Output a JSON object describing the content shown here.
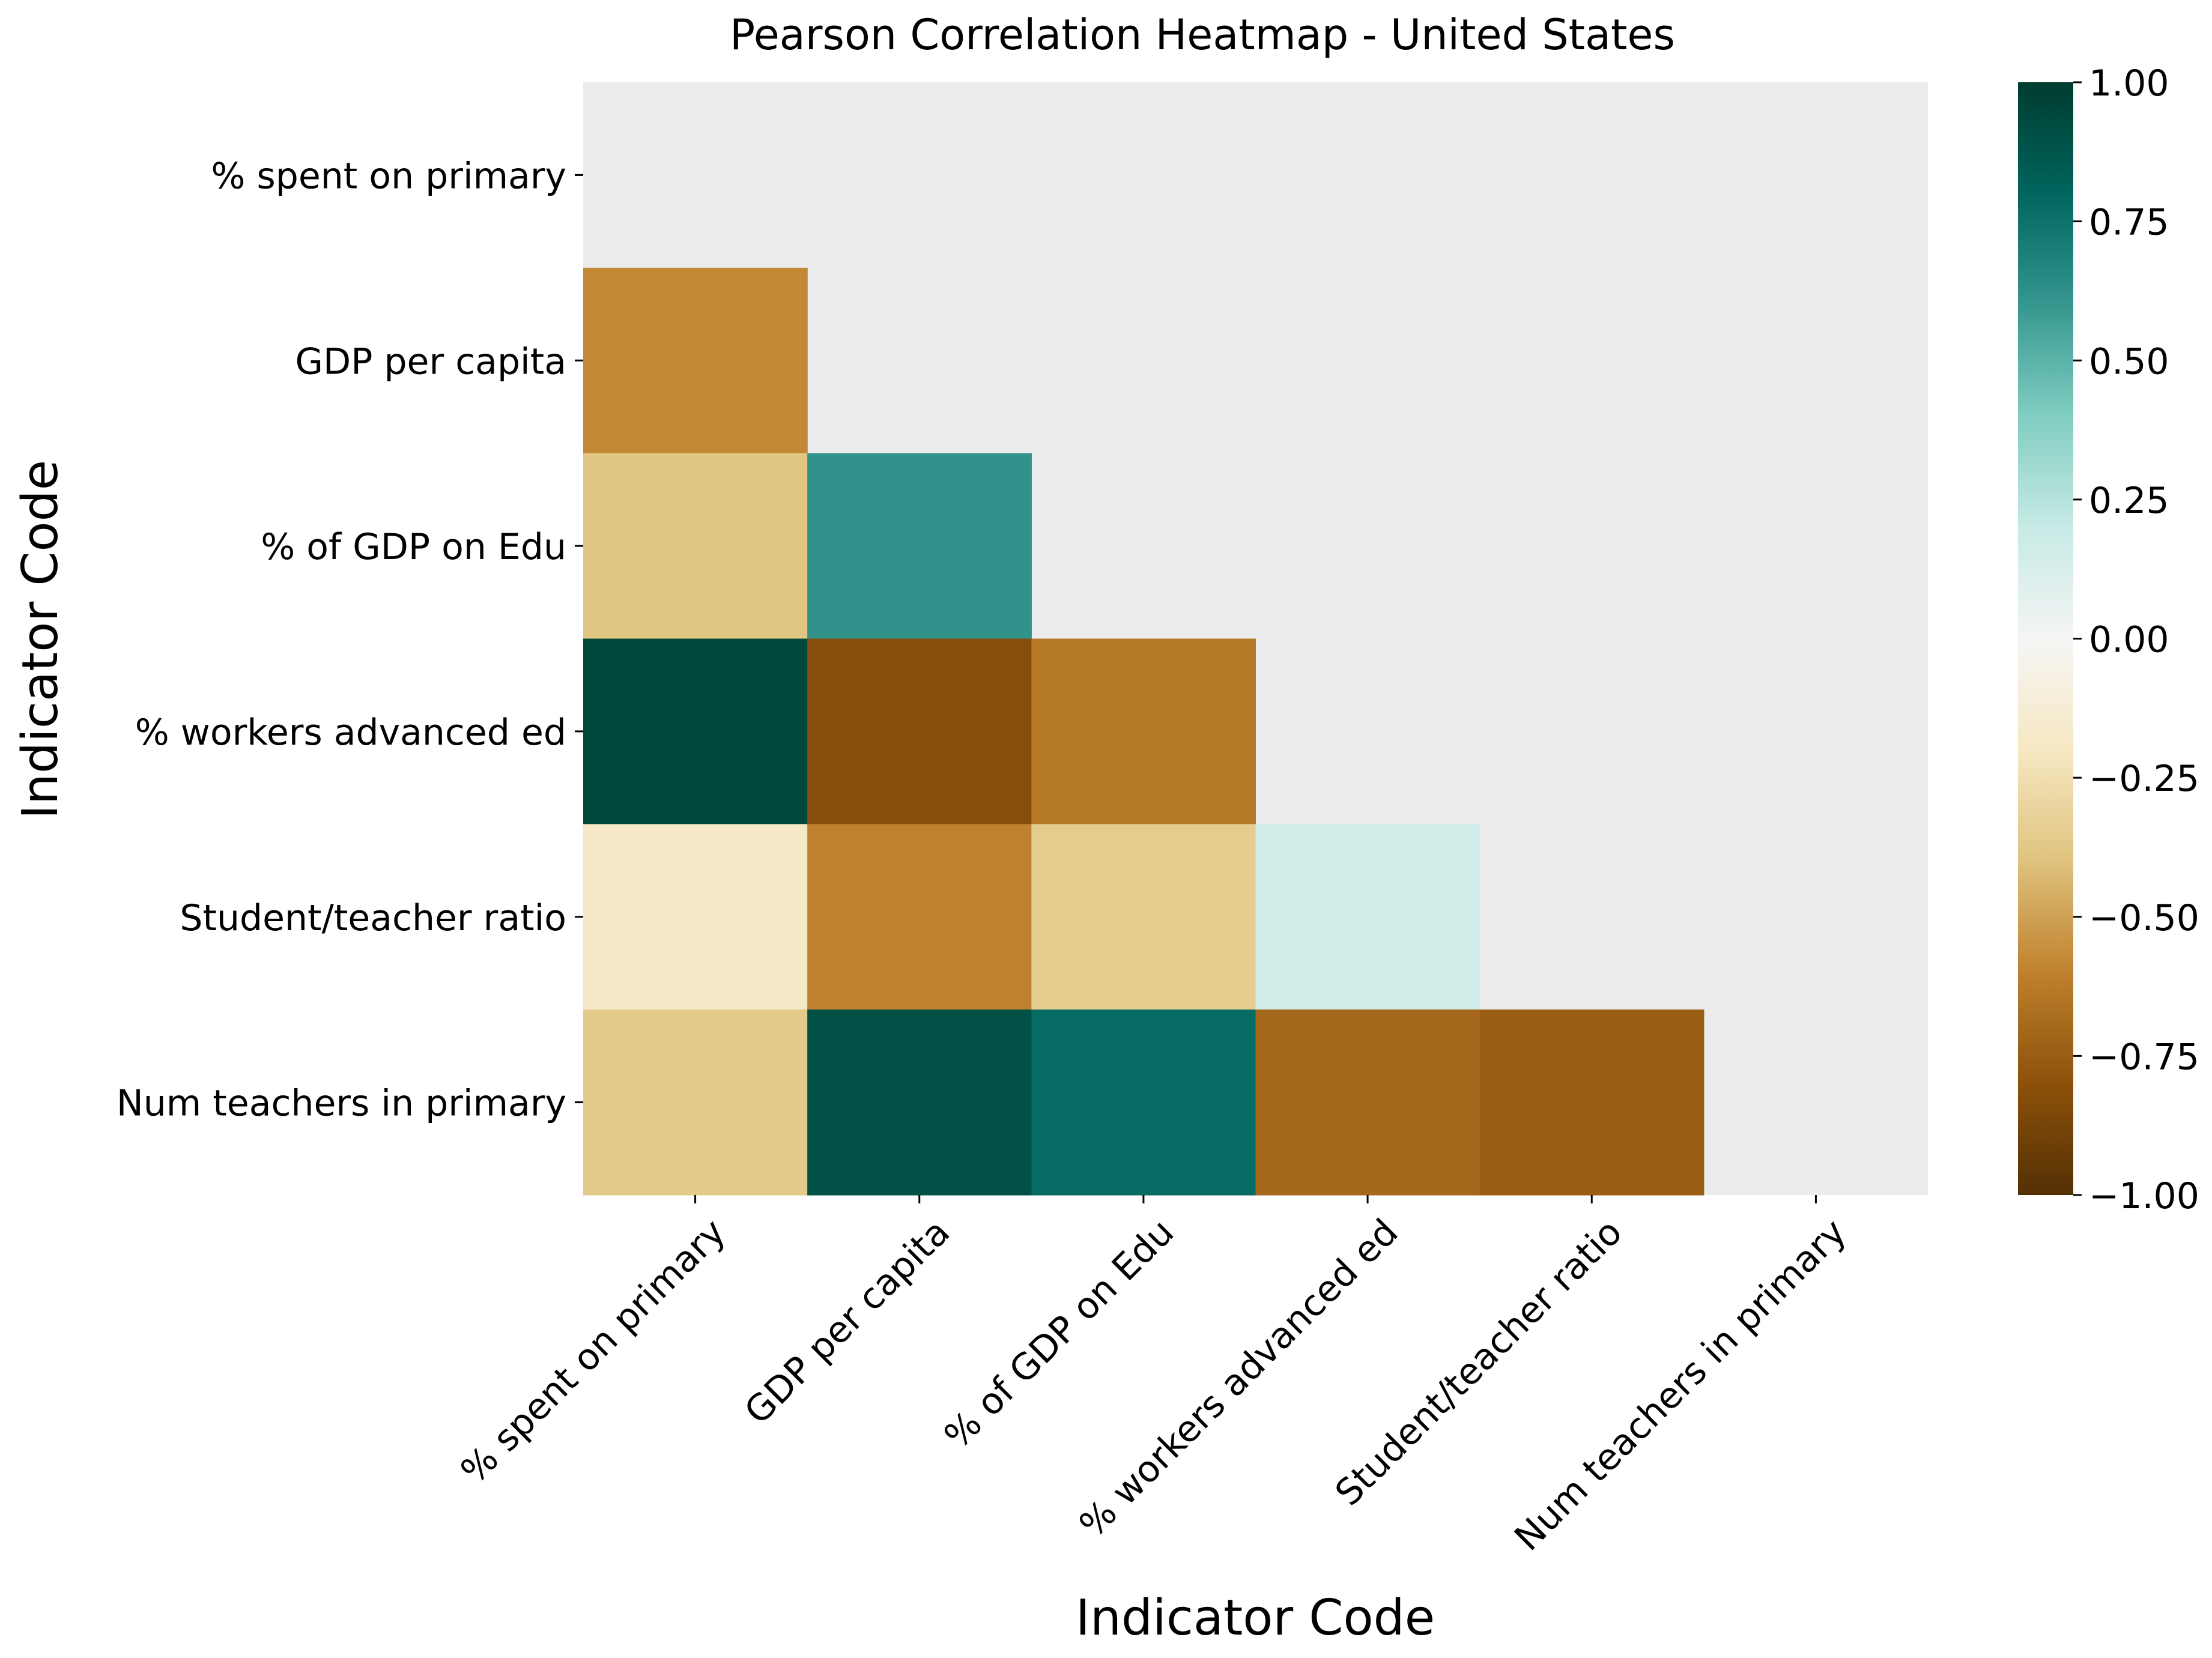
{
  "chart_data": {
    "type": "heatmap",
    "title": "Pearson Correlation Heatmap - United States",
    "xlabel": "Indicator Code",
    "ylabel": "Indicator Code",
    "row_labels": [
      "% spent on primary",
      "GDP per capita",
      "% of GDP on Edu",
      "% workers advanced ed",
      "Student/teacher ratio",
      "Num teachers in primary"
    ],
    "col_labels": [
      "% spent on primary",
      "GDP per capita",
      "% of GDP on Edu",
      "% workers advanced ed",
      "Student/teacher ratio",
      "Num teachers in primary"
    ],
    "mask": "upper triangle including diagonal",
    "values": [
      [
        null,
        null,
        null,
        null,
        null,
        null
      ],
      [
        -0.58,
        null,
        null,
        null,
        null,
        null
      ],
      [
        -0.38,
        0.62,
        null,
        null,
        null,
        null
      ],
      [
        0.95,
        -0.82,
        -0.63,
        null,
        null,
        null
      ],
      [
        -0.18,
        -0.6,
        -0.35,
        0.16,
        null,
        null
      ],
      [
        -0.36,
        0.9,
        0.78,
        -0.7,
        -0.75,
        null
      ]
    ],
    "colormap": "BrBG",
    "vmin": -1.0,
    "vmax": 1.0,
    "colorbar_ticks": [
      "1.00",
      "0.75",
      "0.50",
      "0.25",
      "0.00",
      "−0.25",
      "−0.50",
      "−0.75",
      "−1.00"
    ],
    "colorbar_tick_values": [
      1.0,
      0.75,
      0.5,
      0.25,
      0.0,
      -0.25,
      -0.5,
      -0.75,
      -1.0
    ],
    "mask_color": "#ececec"
  }
}
